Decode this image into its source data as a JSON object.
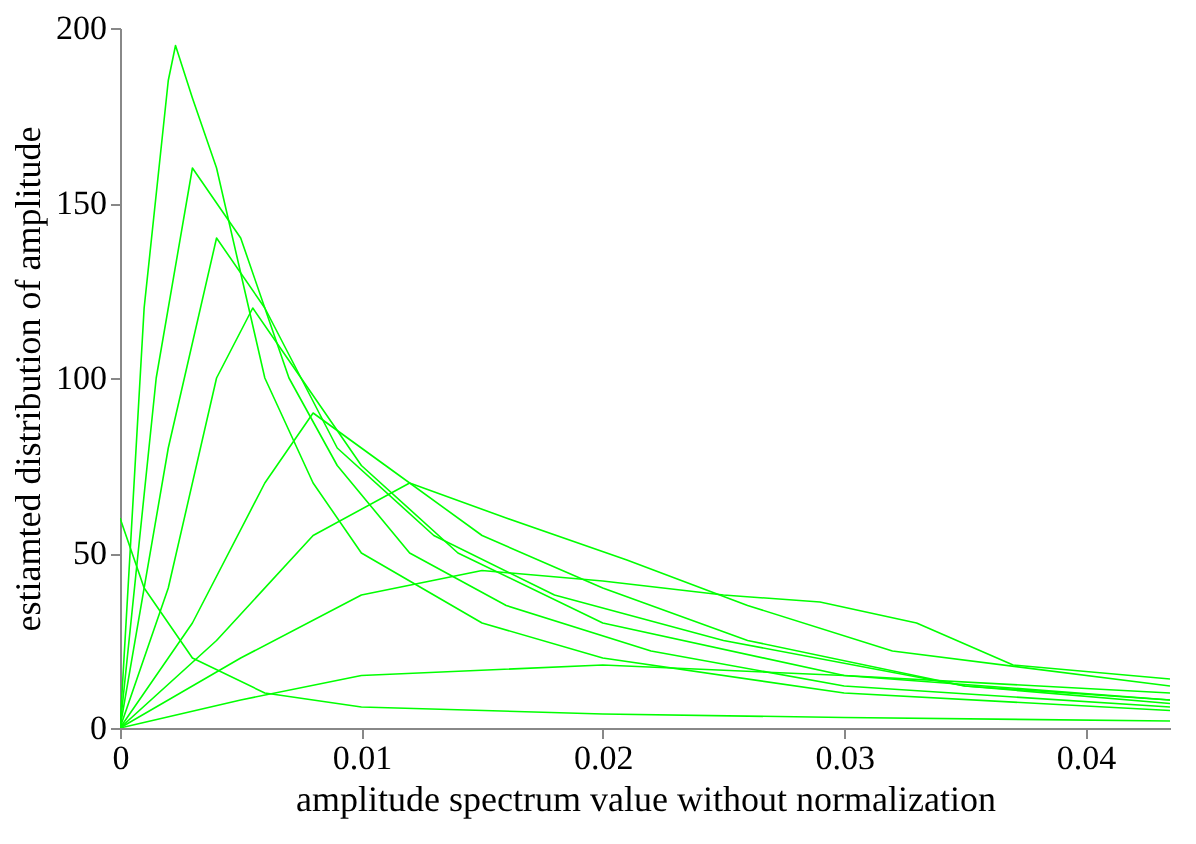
{
  "chart_data": {
    "type": "line",
    "xlabel": "amplitude spectrum value without normalization",
    "ylabel": "estiamted distribution of amplitude",
    "xlim": [
      0,
      0.0435
    ],
    "xticks": [
      0,
      0.01,
      0.02,
      0.03,
      0.04
    ],
    "ylim": [
      0,
      200
    ],
    "yticks": [
      0,
      50,
      100,
      150,
      200
    ],
    "grid": false,
    "legend": false,
    "marker": "none",
    "line_style": "solid",
    "series": [
      {
        "color": "#00ff00",
        "x": [
          0,
          0.001,
          0.002,
          0.0023,
          0.003,
          0.004,
          0.005,
          0.006,
          0.008,
          0.01,
          0.015,
          0.02,
          0.03,
          0.0435
        ],
        "values": [
          0,
          120,
          185,
          195,
          180,
          160,
          130,
          100,
          70,
          50,
          30,
          20,
          10,
          5
        ]
      },
      {
        "color": "#00ff00",
        "x": [
          0,
          0.0015,
          0.003,
          0.005,
          0.007,
          0.009,
          0.012,
          0.016,
          0.022,
          0.03,
          0.0435
        ],
        "values": [
          0,
          100,
          160,
          140,
          100,
          75,
          50,
          35,
          22,
          12,
          6
        ]
      },
      {
        "color": "#00ff00",
        "x": [
          0,
          0.002,
          0.004,
          0.006,
          0.009,
          0.013,
          0.018,
          0.025,
          0.035,
          0.0435
        ],
        "values": [
          0,
          80,
          140,
          120,
          80,
          55,
          38,
          25,
          12,
          7
        ]
      },
      {
        "color": "#00ff00",
        "x": [
          0,
          0.002,
          0.004,
          0.0055,
          0.007,
          0.01,
          0.014,
          0.02,
          0.03,
          0.0435
        ],
        "values": [
          0,
          40,
          100,
          120,
          105,
          75,
          50,
          30,
          15,
          8
        ]
      },
      {
        "color": "#00ff00",
        "x": [
          0,
          0.003,
          0.006,
          0.008,
          0.011,
          0.015,
          0.02,
          0.026,
          0.035,
          0.0435
        ],
        "values": [
          0,
          30,
          70,
          90,
          75,
          55,
          40,
          25,
          12,
          8
        ]
      },
      {
        "color": "#00ff00",
        "x": [
          0,
          0.004,
          0.008,
          0.012,
          0.016,
          0.021,
          0.026,
          0.032,
          0.0435
        ],
        "values": [
          0,
          25,
          55,
          70,
          60,
          48,
          35,
          22,
          12
        ]
      },
      {
        "color": "#00ff00",
        "x": [
          0,
          0.005,
          0.01,
          0.015,
          0.02,
          0.025,
          0.029,
          0.033,
          0.037,
          0.0435
        ],
        "values": [
          0,
          20,
          38,
          45,
          42,
          38,
          36,
          30,
          18,
          14
        ]
      },
      {
        "color": "#00ff00",
        "x": [
          0,
          0.005,
          0.01,
          0.02,
          0.03,
          0.0435
        ],
        "values": [
          0,
          8,
          15,
          18,
          15,
          10
        ]
      },
      {
        "color": "#00ff00",
        "x": [
          0,
          0.001,
          0.003,
          0.006,
          0.01,
          0.02,
          0.03,
          0.0435
        ],
        "values": [
          60,
          40,
          20,
          10,
          6,
          4,
          3,
          2
        ]
      }
    ]
  }
}
